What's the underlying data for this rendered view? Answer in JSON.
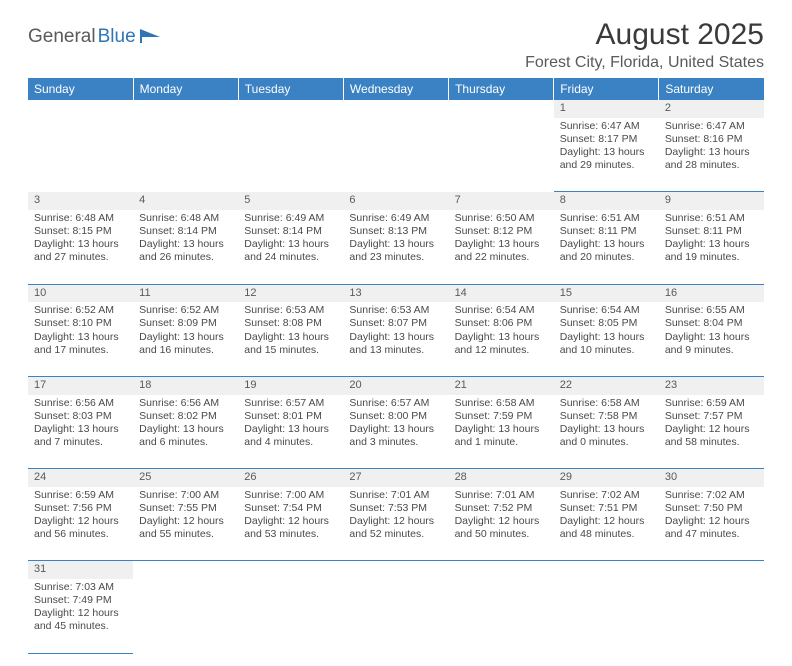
{
  "logo": {
    "part1": "General",
    "part2": "Blue"
  },
  "title": "August 2025",
  "subtitle": "Forest City, Florida, United States",
  "weekdays": [
    "Sunday",
    "Monday",
    "Tuesday",
    "Wednesday",
    "Thursday",
    "Friday",
    "Saturday"
  ],
  "colors": {
    "header_bg": "#3b82c4",
    "header_text": "#ffffff",
    "daynum_bg": "#f0f0f0",
    "border": "#3b82c4",
    "text": "#4a4a4a",
    "logo_accent": "#2f74b5"
  },
  "fonts": {
    "title_size": 30,
    "subtitle_size": 16,
    "weekday_size": 12,
    "daynum_size": 11,
    "cell_size": 10.5
  },
  "weeks": [
    [
      null,
      null,
      null,
      null,
      null,
      {
        "n": "1",
        "sr": "Sunrise: 6:47 AM",
        "ss": "Sunset: 8:17 PM",
        "d1": "Daylight: 13 hours",
        "d2": "and 29 minutes."
      },
      {
        "n": "2",
        "sr": "Sunrise: 6:47 AM",
        "ss": "Sunset: 8:16 PM",
        "d1": "Daylight: 13 hours",
        "d2": "and 28 minutes."
      }
    ],
    [
      {
        "n": "3",
        "sr": "Sunrise: 6:48 AM",
        "ss": "Sunset: 8:15 PM",
        "d1": "Daylight: 13 hours",
        "d2": "and 27 minutes."
      },
      {
        "n": "4",
        "sr": "Sunrise: 6:48 AM",
        "ss": "Sunset: 8:14 PM",
        "d1": "Daylight: 13 hours",
        "d2": "and 26 minutes."
      },
      {
        "n": "5",
        "sr": "Sunrise: 6:49 AM",
        "ss": "Sunset: 8:14 PM",
        "d1": "Daylight: 13 hours",
        "d2": "and 24 minutes."
      },
      {
        "n": "6",
        "sr": "Sunrise: 6:49 AM",
        "ss": "Sunset: 8:13 PM",
        "d1": "Daylight: 13 hours",
        "d2": "and 23 minutes."
      },
      {
        "n": "7",
        "sr": "Sunrise: 6:50 AM",
        "ss": "Sunset: 8:12 PM",
        "d1": "Daylight: 13 hours",
        "d2": "and 22 minutes."
      },
      {
        "n": "8",
        "sr": "Sunrise: 6:51 AM",
        "ss": "Sunset: 8:11 PM",
        "d1": "Daylight: 13 hours",
        "d2": "and 20 minutes."
      },
      {
        "n": "9",
        "sr": "Sunrise: 6:51 AM",
        "ss": "Sunset: 8:11 PM",
        "d1": "Daylight: 13 hours",
        "d2": "and 19 minutes."
      }
    ],
    [
      {
        "n": "10",
        "sr": "Sunrise: 6:52 AM",
        "ss": "Sunset: 8:10 PM",
        "d1": "Daylight: 13 hours",
        "d2": "and 17 minutes."
      },
      {
        "n": "11",
        "sr": "Sunrise: 6:52 AM",
        "ss": "Sunset: 8:09 PM",
        "d1": "Daylight: 13 hours",
        "d2": "and 16 minutes."
      },
      {
        "n": "12",
        "sr": "Sunrise: 6:53 AM",
        "ss": "Sunset: 8:08 PM",
        "d1": "Daylight: 13 hours",
        "d2": "and 15 minutes."
      },
      {
        "n": "13",
        "sr": "Sunrise: 6:53 AM",
        "ss": "Sunset: 8:07 PM",
        "d1": "Daylight: 13 hours",
        "d2": "and 13 minutes."
      },
      {
        "n": "14",
        "sr": "Sunrise: 6:54 AM",
        "ss": "Sunset: 8:06 PM",
        "d1": "Daylight: 13 hours",
        "d2": "and 12 minutes."
      },
      {
        "n": "15",
        "sr": "Sunrise: 6:54 AM",
        "ss": "Sunset: 8:05 PM",
        "d1": "Daylight: 13 hours",
        "d2": "and 10 minutes."
      },
      {
        "n": "16",
        "sr": "Sunrise: 6:55 AM",
        "ss": "Sunset: 8:04 PM",
        "d1": "Daylight: 13 hours",
        "d2": "and 9 minutes."
      }
    ],
    [
      {
        "n": "17",
        "sr": "Sunrise: 6:56 AM",
        "ss": "Sunset: 8:03 PM",
        "d1": "Daylight: 13 hours",
        "d2": "and 7 minutes."
      },
      {
        "n": "18",
        "sr": "Sunrise: 6:56 AM",
        "ss": "Sunset: 8:02 PM",
        "d1": "Daylight: 13 hours",
        "d2": "and 6 minutes."
      },
      {
        "n": "19",
        "sr": "Sunrise: 6:57 AM",
        "ss": "Sunset: 8:01 PM",
        "d1": "Daylight: 13 hours",
        "d2": "and 4 minutes."
      },
      {
        "n": "20",
        "sr": "Sunrise: 6:57 AM",
        "ss": "Sunset: 8:00 PM",
        "d1": "Daylight: 13 hours",
        "d2": "and 3 minutes."
      },
      {
        "n": "21",
        "sr": "Sunrise: 6:58 AM",
        "ss": "Sunset: 7:59 PM",
        "d1": "Daylight: 13 hours",
        "d2": "and 1 minute."
      },
      {
        "n": "22",
        "sr": "Sunrise: 6:58 AM",
        "ss": "Sunset: 7:58 PM",
        "d1": "Daylight: 13 hours",
        "d2": "and 0 minutes."
      },
      {
        "n": "23",
        "sr": "Sunrise: 6:59 AM",
        "ss": "Sunset: 7:57 PM",
        "d1": "Daylight: 12 hours",
        "d2": "and 58 minutes."
      }
    ],
    [
      {
        "n": "24",
        "sr": "Sunrise: 6:59 AM",
        "ss": "Sunset: 7:56 PM",
        "d1": "Daylight: 12 hours",
        "d2": "and 56 minutes."
      },
      {
        "n": "25",
        "sr": "Sunrise: 7:00 AM",
        "ss": "Sunset: 7:55 PM",
        "d1": "Daylight: 12 hours",
        "d2": "and 55 minutes."
      },
      {
        "n": "26",
        "sr": "Sunrise: 7:00 AM",
        "ss": "Sunset: 7:54 PM",
        "d1": "Daylight: 12 hours",
        "d2": "and 53 minutes."
      },
      {
        "n": "27",
        "sr": "Sunrise: 7:01 AM",
        "ss": "Sunset: 7:53 PM",
        "d1": "Daylight: 12 hours",
        "d2": "and 52 minutes."
      },
      {
        "n": "28",
        "sr": "Sunrise: 7:01 AM",
        "ss": "Sunset: 7:52 PM",
        "d1": "Daylight: 12 hours",
        "d2": "and 50 minutes."
      },
      {
        "n": "29",
        "sr": "Sunrise: 7:02 AM",
        "ss": "Sunset: 7:51 PM",
        "d1": "Daylight: 12 hours",
        "d2": "and 48 minutes."
      },
      {
        "n": "30",
        "sr": "Sunrise: 7:02 AM",
        "ss": "Sunset: 7:50 PM",
        "d1": "Daylight: 12 hours",
        "d2": "and 47 minutes."
      }
    ],
    [
      {
        "n": "31",
        "sr": "Sunrise: 7:03 AM",
        "ss": "Sunset: 7:49 PM",
        "d1": "Daylight: 12 hours",
        "d2": "and 45 minutes."
      },
      null,
      null,
      null,
      null,
      null,
      null
    ]
  ]
}
